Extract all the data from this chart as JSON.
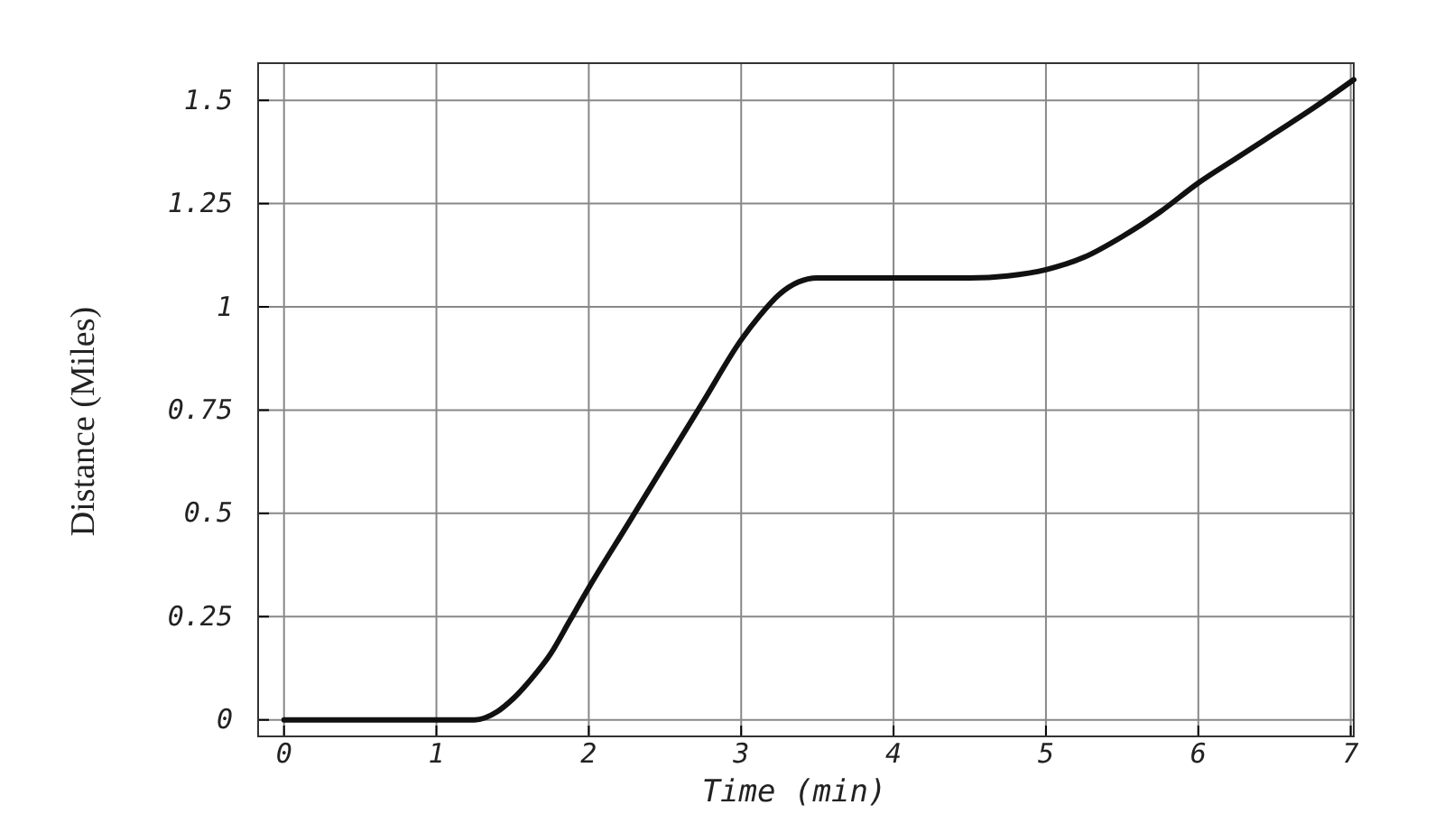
{
  "chart_data": {
    "type": "line",
    "xlabel": "Time (min)",
    "ylabel": "Distance (Miles)",
    "xlim": [
      -0.17,
      7.02
    ],
    "ylim": [
      -0.04,
      1.59
    ],
    "xticks": [
      0,
      1,
      2,
      3,
      4,
      5,
      6,
      7
    ],
    "yticks": [
      0,
      {
        "value": 0.25,
        "label": "0.25"
      },
      {
        "value": 0.5,
        "label": "0.5"
      },
      {
        "value": 0.75,
        "label": "0.75"
      },
      1,
      {
        "value": 1.25,
        "label": "1.25"
      },
      {
        "value": 1.5,
        "label": "1.5"
      }
    ],
    "grid": true,
    "marker": "none",
    "line_style": "solid",
    "series": [
      {
        "color": "#111111",
        "x": [
          0,
          0.5,
          1,
          1.25,
          1.4,
          1.5,
          1.625,
          1.75,
          1.875,
          2,
          2.25,
          2.5,
          2.75,
          3,
          3.125,
          3.25,
          3.375,
          3.5,
          3.75,
          4,
          4.25,
          4.5,
          4.75,
          5,
          5.25,
          5.5,
          5.75,
          6,
          6.25,
          6.5,
          6.75,
          7.02
        ],
        "values": [
          0,
          0,
          0,
          0,
          0.02,
          0.05,
          0.1,
          0.16,
          0.24,
          0.32,
          0.47,
          0.62,
          0.77,
          0.92,
          0.98,
          1.03,
          1.06,
          1.07,
          1.07,
          1.07,
          1.07,
          1.07,
          1.075,
          1.09,
          1.12,
          1.17,
          1.23,
          1.3,
          1.36,
          1.42,
          1.48,
          1.55
        ]
      }
    ]
  }
}
